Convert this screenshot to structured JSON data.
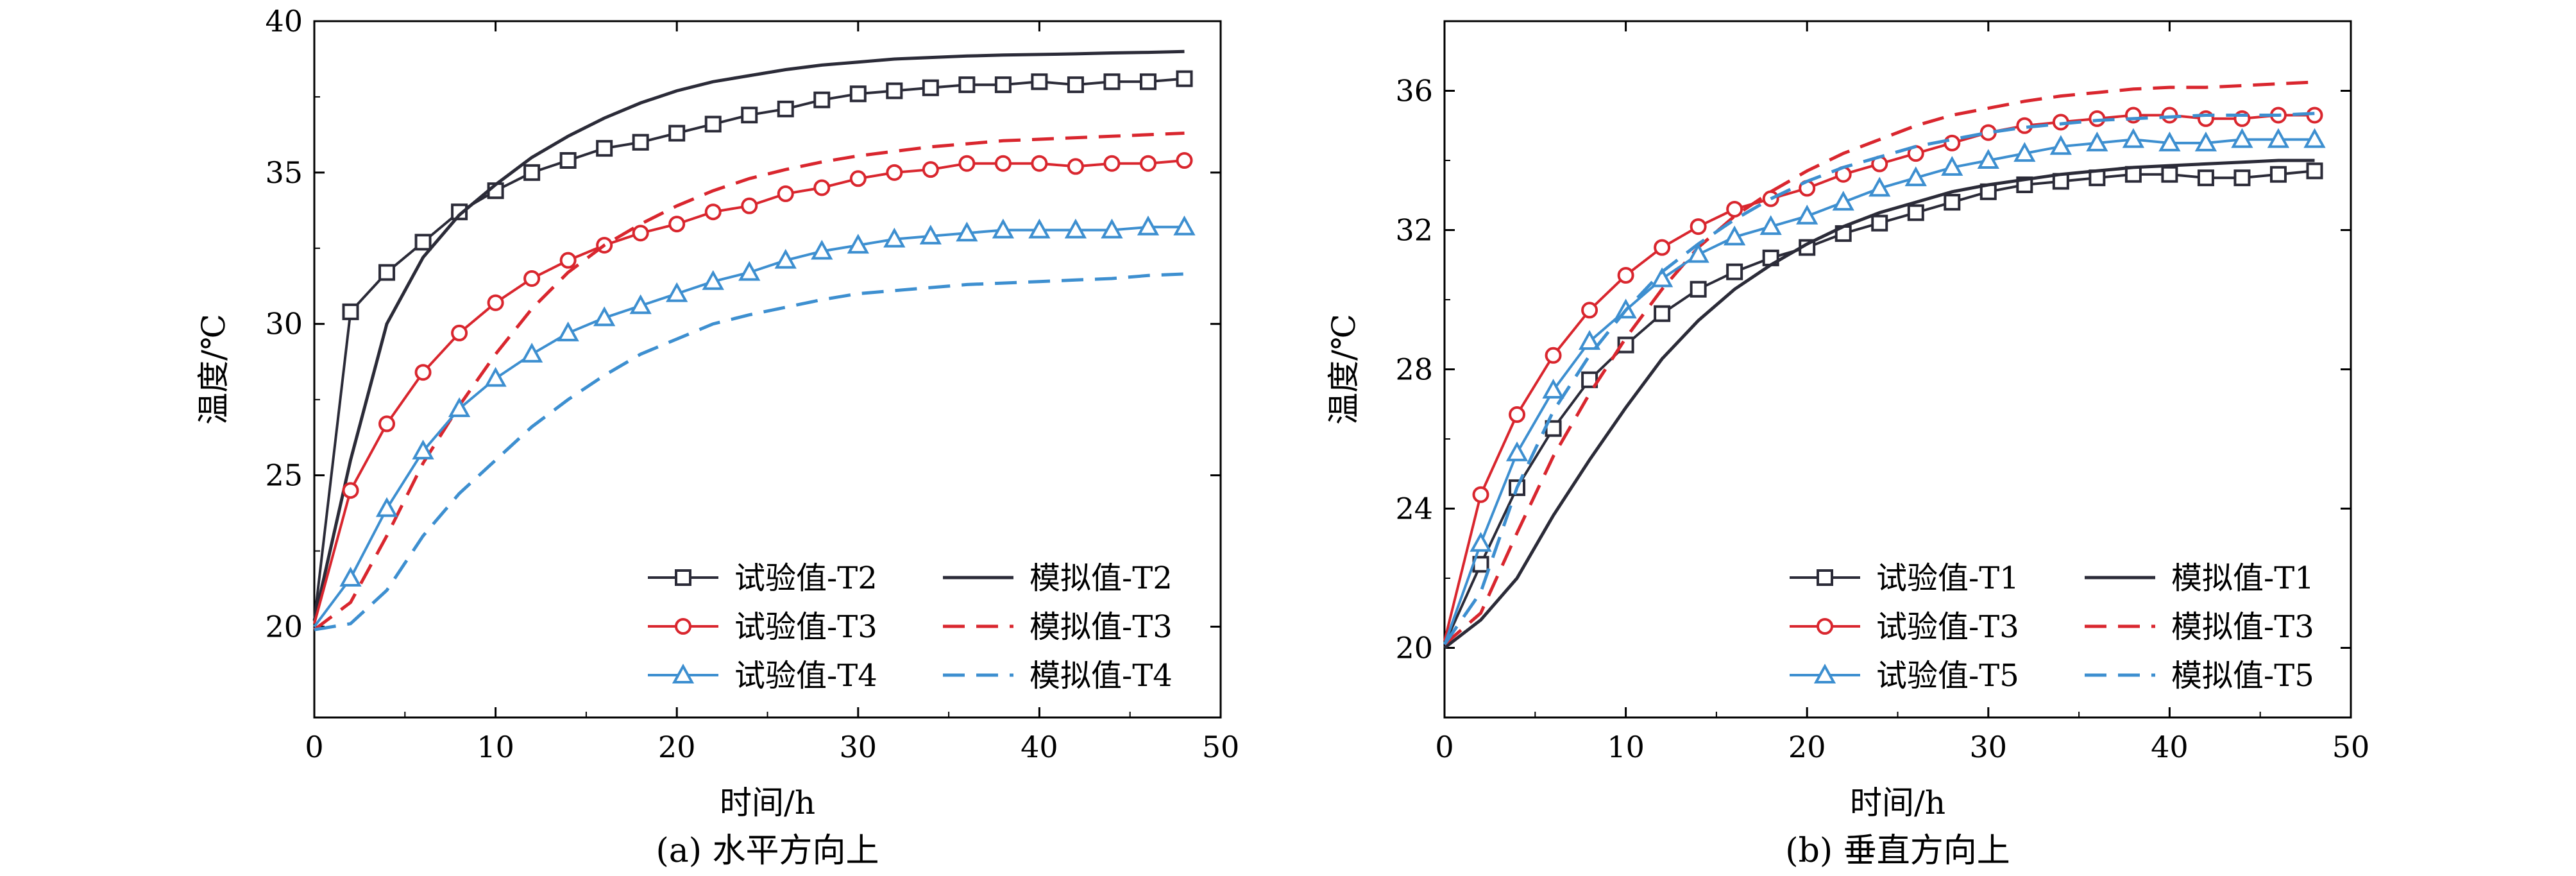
{
  "chart_data": [
    {
      "type": "line",
      "caption": "(a) 水平方向上",
      "xlabel": "时间/h",
      "ylabel": "温度/℃",
      "xlim": [
        0,
        50
      ],
      "ylim": [
        17,
        40
      ],
      "xticks": [
        0,
        10,
        20,
        30,
        40,
        50
      ],
      "yticks": [
        20,
        25,
        30,
        35,
        40
      ],
      "grid": false,
      "legend_position": "bottom-right",
      "series": [
        {
          "name": "试验值-T2",
          "kind": "measured",
          "color": "#2b2b38",
          "marker": "square",
          "x": [
            0,
            2,
            4,
            6,
            8,
            10,
            12,
            14,
            16,
            18,
            20,
            22,
            24,
            26,
            28,
            30,
            32,
            34,
            36,
            38,
            40,
            42,
            44,
            46,
            48
          ],
          "y": [
            20.2,
            30.4,
            31.7,
            32.7,
            33.7,
            34.4,
            35.0,
            35.4,
            35.8,
            36.0,
            36.3,
            36.6,
            36.9,
            37.1,
            37.4,
            37.6,
            37.7,
            37.8,
            37.9,
            37.9,
            38.0,
            37.9,
            38.0,
            38.0,
            38.1
          ]
        },
        {
          "name": "模拟值-T2",
          "kind": "simulated",
          "color": "#2b2b38",
          "dash": "solid",
          "x": [
            0,
            2,
            4,
            6,
            8,
            10,
            12,
            14,
            16,
            18,
            20,
            22,
            24,
            26,
            28,
            30,
            32,
            34,
            36,
            38,
            40,
            42,
            44,
            46,
            48
          ],
          "y": [
            20.2,
            25.5,
            30.0,
            32.2,
            33.6,
            34.6,
            35.5,
            36.2,
            36.8,
            37.3,
            37.7,
            38.0,
            38.2,
            38.4,
            38.55,
            38.65,
            38.75,
            38.8,
            38.85,
            38.88,
            38.9,
            38.92,
            38.95,
            38.97,
            39.0
          ]
        },
        {
          "name": "试验值-T3",
          "kind": "measured",
          "color": "#d9262e",
          "marker": "circle",
          "x": [
            0,
            2,
            4,
            6,
            8,
            10,
            12,
            14,
            16,
            18,
            20,
            22,
            24,
            26,
            28,
            30,
            32,
            34,
            36,
            38,
            40,
            42,
            44,
            46,
            48
          ],
          "y": [
            20.1,
            24.5,
            26.7,
            28.4,
            29.7,
            30.7,
            31.5,
            32.1,
            32.6,
            33.0,
            33.3,
            33.7,
            33.9,
            34.3,
            34.5,
            34.8,
            35.0,
            35.1,
            35.3,
            35.3,
            35.3,
            35.2,
            35.3,
            35.3,
            35.4
          ]
        },
        {
          "name": "模拟值-T3",
          "kind": "simulated",
          "color": "#d9262e",
          "dash": "dashed",
          "x": [
            0,
            2,
            4,
            6,
            8,
            10,
            12,
            14,
            16,
            18,
            20,
            22,
            24,
            26,
            28,
            30,
            32,
            34,
            36,
            38,
            40,
            42,
            44,
            46,
            48
          ],
          "y": [
            19.9,
            20.8,
            23.0,
            25.4,
            27.3,
            29.0,
            30.5,
            31.7,
            32.6,
            33.3,
            33.9,
            34.4,
            34.8,
            35.1,
            35.35,
            35.55,
            35.7,
            35.85,
            35.95,
            36.05,
            36.1,
            36.15,
            36.2,
            36.25,
            36.3
          ]
        },
        {
          "name": "试验值-T4",
          "kind": "measured",
          "color": "#3d8fd0",
          "marker": "triangle",
          "x": [
            0,
            2,
            4,
            6,
            8,
            10,
            12,
            14,
            16,
            18,
            20,
            22,
            24,
            26,
            28,
            30,
            32,
            34,
            36,
            38,
            40,
            42,
            44,
            46,
            48
          ],
          "y": [
            20.0,
            21.6,
            23.9,
            25.8,
            27.2,
            28.2,
            29.0,
            29.7,
            30.2,
            30.6,
            31.0,
            31.4,
            31.7,
            32.1,
            32.4,
            32.6,
            32.8,
            32.9,
            33.0,
            33.1,
            33.1,
            33.1,
            33.1,
            33.2,
            33.2
          ]
        },
        {
          "name": "模拟值-T4",
          "kind": "simulated",
          "color": "#3d8fd0",
          "dash": "dashed",
          "x": [
            0,
            2,
            4,
            6,
            8,
            10,
            12,
            14,
            16,
            18,
            20,
            22,
            24,
            26,
            28,
            30,
            32,
            34,
            36,
            38,
            40,
            42,
            44,
            46,
            48
          ],
          "y": [
            19.9,
            20.1,
            21.2,
            23.0,
            24.4,
            25.5,
            26.6,
            27.5,
            28.3,
            29.0,
            29.5,
            30.0,
            30.3,
            30.55,
            30.8,
            31.0,
            31.1,
            31.2,
            31.3,
            31.35,
            31.4,
            31.45,
            31.5,
            31.6,
            31.65
          ]
        }
      ]
    },
    {
      "type": "line",
      "caption": "(b) 垂直方向上",
      "xlabel": "时间/h",
      "ylabel": "温度/℃",
      "xlim": [
        0,
        50
      ],
      "ylim": [
        18,
        38
      ],
      "xticks": [
        0,
        10,
        20,
        30,
        40,
        50
      ],
      "yticks": [
        20,
        24,
        28,
        32,
        36
      ],
      "grid": false,
      "legend_position": "bottom-right",
      "series": [
        {
          "name": "试验值-T1",
          "kind": "measured",
          "color": "#2b2b38",
          "marker": "square",
          "x": [
            0,
            2,
            4,
            6,
            8,
            10,
            12,
            14,
            16,
            18,
            20,
            22,
            24,
            26,
            28,
            30,
            32,
            34,
            36,
            38,
            40,
            42,
            44,
            46,
            48
          ],
          "y": [
            20.1,
            22.4,
            24.6,
            26.3,
            27.7,
            28.7,
            29.6,
            30.3,
            30.8,
            31.2,
            31.5,
            31.9,
            32.2,
            32.5,
            32.8,
            33.1,
            33.3,
            33.4,
            33.5,
            33.6,
            33.6,
            33.5,
            33.5,
            33.6,
            33.7
          ]
        },
        {
          "name": "模拟值-T1",
          "kind": "simulated",
          "color": "#2b2b38",
          "dash": "solid",
          "x": [
            0,
            2,
            4,
            6,
            8,
            10,
            12,
            14,
            16,
            18,
            20,
            22,
            24,
            26,
            28,
            30,
            32,
            34,
            36,
            38,
            40,
            42,
            44,
            46,
            48
          ],
          "y": [
            20.0,
            20.8,
            22.0,
            23.8,
            25.4,
            26.9,
            28.3,
            29.4,
            30.3,
            31.0,
            31.6,
            32.1,
            32.5,
            32.8,
            33.1,
            33.3,
            33.45,
            33.6,
            33.7,
            33.8,
            33.85,
            33.9,
            33.95,
            34.0,
            34.0
          ]
        },
        {
          "name": "试验值-T3",
          "kind": "measured",
          "color": "#d9262e",
          "marker": "circle",
          "x": [
            0,
            2,
            4,
            6,
            8,
            10,
            12,
            14,
            16,
            18,
            20,
            22,
            24,
            26,
            28,
            30,
            32,
            34,
            36,
            38,
            40,
            42,
            44,
            46,
            48
          ],
          "y": [
            20.2,
            24.4,
            26.7,
            28.4,
            29.7,
            30.7,
            31.5,
            32.1,
            32.6,
            32.9,
            33.2,
            33.6,
            33.9,
            34.2,
            34.5,
            34.8,
            35.0,
            35.1,
            35.2,
            35.3,
            35.3,
            35.2,
            35.2,
            35.3,
            35.3
          ]
        },
        {
          "name": "模拟值-T3",
          "kind": "simulated",
          "color": "#d9262e",
          "dash": "dashed",
          "x": [
            0,
            2,
            4,
            6,
            8,
            10,
            12,
            14,
            16,
            18,
            20,
            22,
            24,
            26,
            28,
            30,
            32,
            34,
            36,
            38,
            40,
            42,
            44,
            46,
            48
          ],
          "y": [
            20.1,
            21.0,
            23.3,
            25.5,
            27.3,
            28.9,
            30.3,
            31.5,
            32.4,
            33.1,
            33.7,
            34.2,
            34.6,
            35.0,
            35.3,
            35.5,
            35.7,
            35.85,
            35.95,
            36.05,
            36.1,
            36.1,
            36.15,
            36.2,
            36.25
          ]
        },
        {
          "name": "试验值-T5",
          "kind": "measured",
          "color": "#3d8fd0",
          "marker": "triangle",
          "x": [
            0,
            2,
            4,
            6,
            8,
            10,
            12,
            14,
            16,
            18,
            20,
            22,
            24,
            26,
            28,
            30,
            32,
            34,
            36,
            38,
            40,
            42,
            44,
            46,
            48
          ],
          "y": [
            20.1,
            23.0,
            25.6,
            27.4,
            28.8,
            29.7,
            30.6,
            31.3,
            31.8,
            32.1,
            32.4,
            32.8,
            33.2,
            33.5,
            33.8,
            34.0,
            34.2,
            34.4,
            34.5,
            34.6,
            34.5,
            34.5,
            34.6,
            34.6,
            34.6
          ]
        },
        {
          "name": "模拟值-T5",
          "kind": "simulated",
          "color": "#3d8fd0",
          "dash": "dashed",
          "x": [
            0,
            2,
            4,
            6,
            8,
            10,
            12,
            14,
            16,
            18,
            20,
            22,
            24,
            26,
            28,
            30,
            32,
            34,
            36,
            38,
            40,
            42,
            44,
            46,
            48
          ],
          "y": [
            20.1,
            21.6,
            24.6,
            26.8,
            28.4,
            29.7,
            30.8,
            31.6,
            32.3,
            32.9,
            33.4,
            33.8,
            34.1,
            34.4,
            34.6,
            34.8,
            34.95,
            35.05,
            35.15,
            35.2,
            35.25,
            35.3,
            35.3,
            35.3,
            35.35
          ]
        }
      ]
    }
  ]
}
